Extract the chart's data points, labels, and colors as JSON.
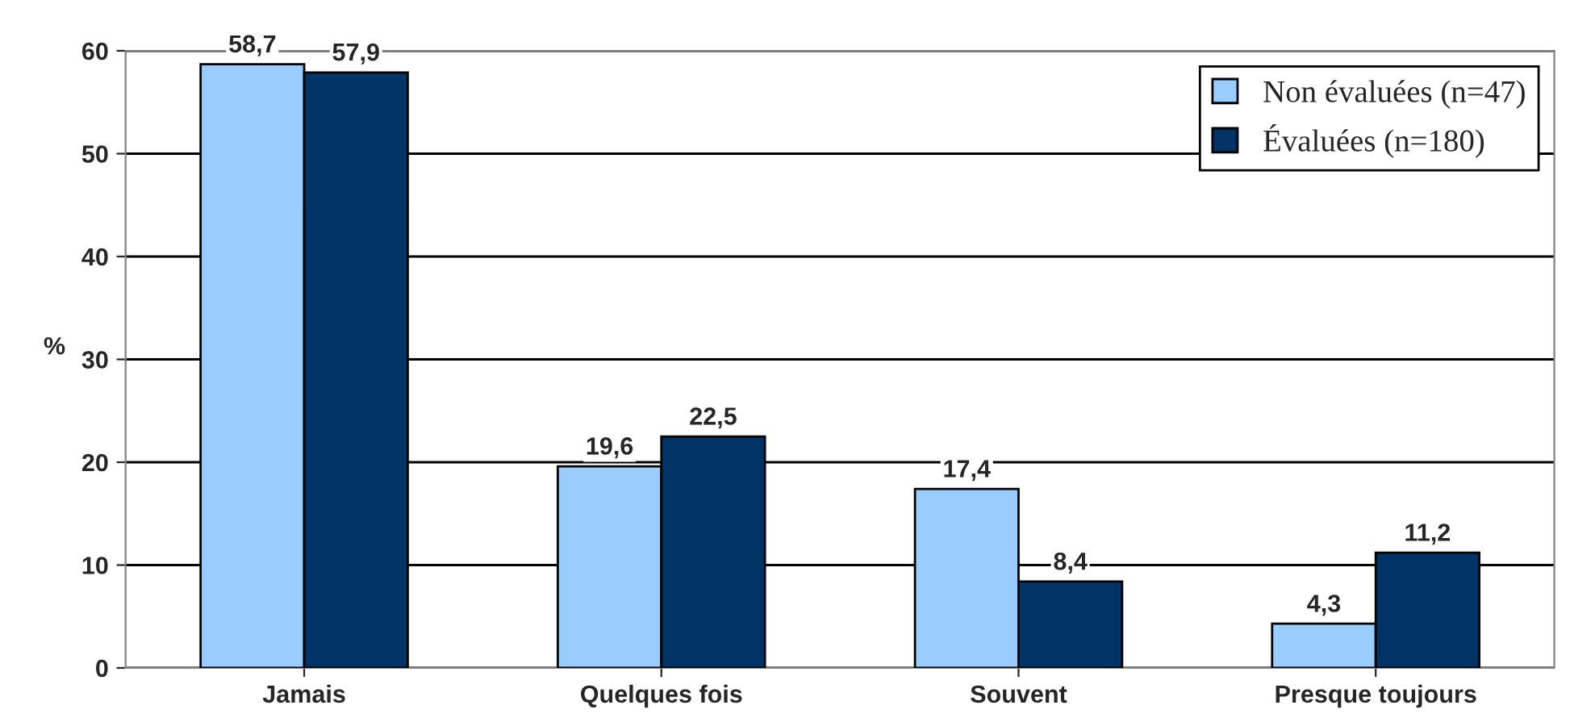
{
  "chart_data": {
    "type": "bar",
    "ylabel": "%",
    "categories": [
      "Jamais",
      "Quelques fois",
      "Souvent",
      "Presque toujours"
    ],
    "series": [
      {
        "name": "Non évaluées (n=47)",
        "color": "#99ccff",
        "values": [
          58.7,
          19.6,
          17.4,
          4.3
        ],
        "value_labels": [
          "58,7",
          "19,6",
          "17,4",
          "4,3"
        ]
      },
      {
        "name": "Évaluées (n=180)",
        "color": "#003366",
        "values": [
          57.9,
          22.5,
          8.4,
          11.2
        ],
        "value_labels": [
          "57,9",
          "22,5",
          "8,4",
          "11,2"
        ]
      }
    ],
    "ylim": [
      0,
      60
    ],
    "yticks": [
      0,
      10,
      20,
      30,
      40,
      50,
      60
    ],
    "grid": "y",
    "legend": "top right"
  }
}
